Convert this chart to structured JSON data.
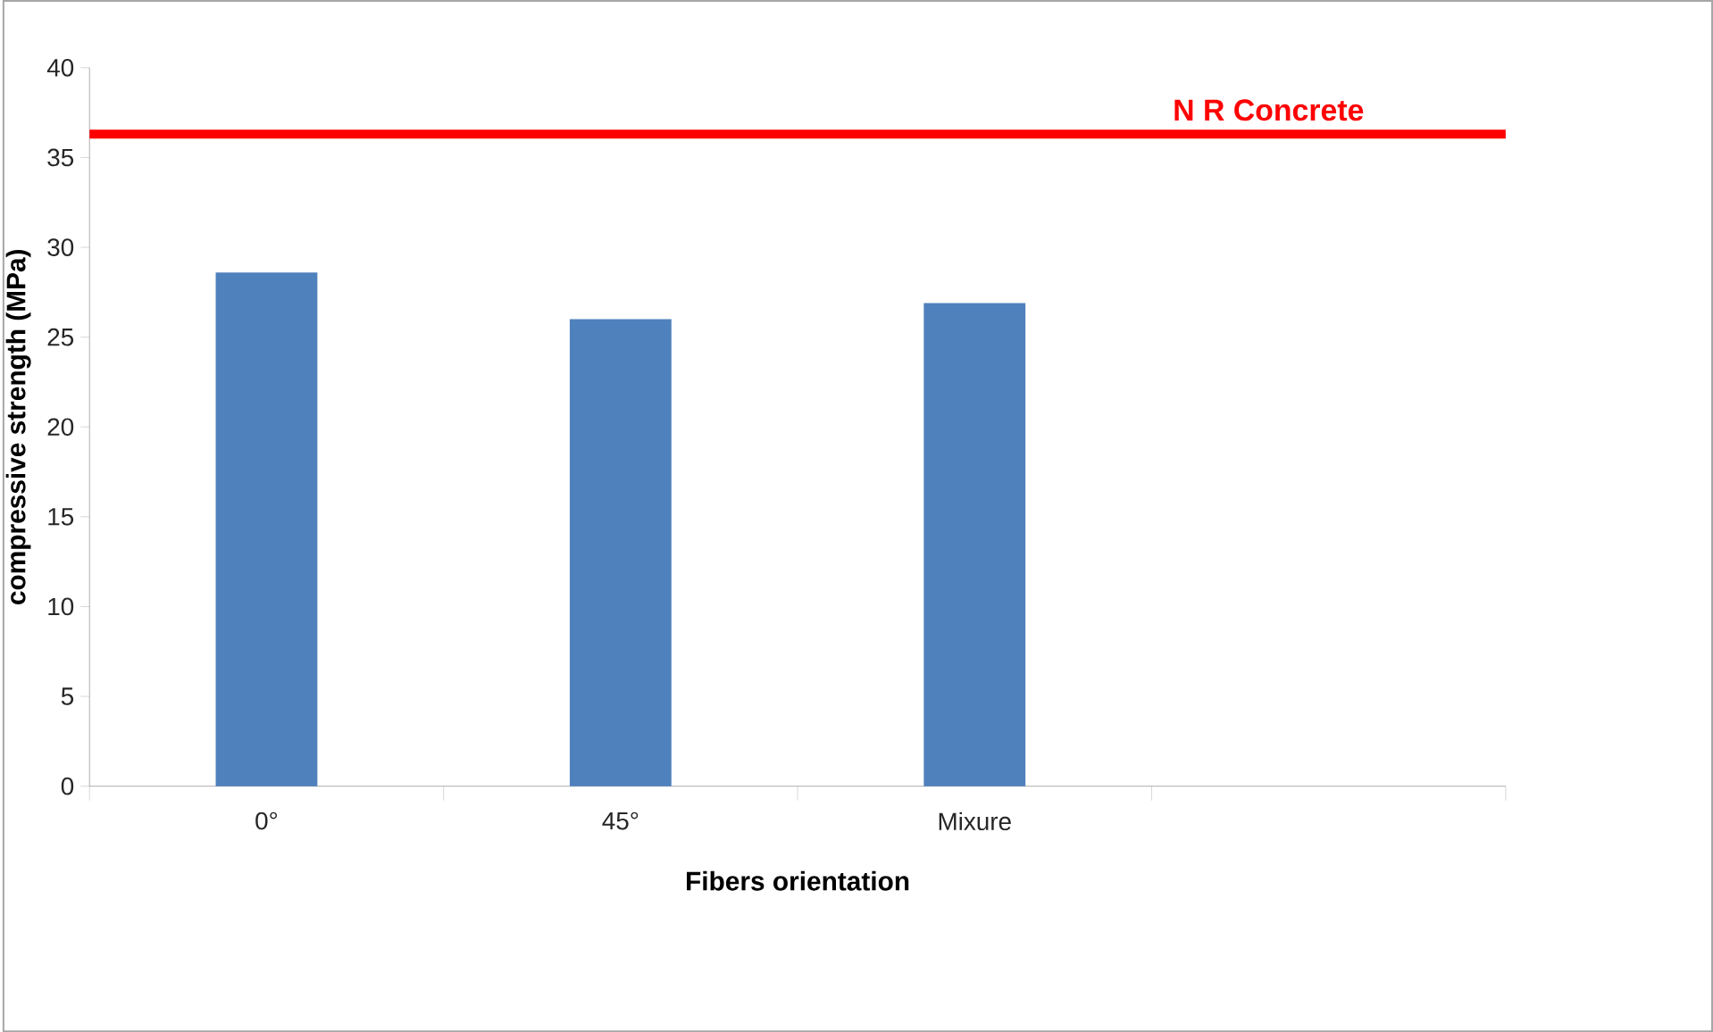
{
  "chart_data": {
    "type": "bar",
    "xlabel": "Fibers orientation",
    "ylabel": "compressive strength (MPa)",
    "categories": [
      "0°",
      "45°",
      "Mixure",
      null
    ],
    "values": [
      28.6,
      26.0,
      26.9,
      null
    ],
    "color": "#4f81bd",
    "ylim": [
      0,
      40
    ],
    "yticks": [
      0,
      5,
      10,
      15,
      20,
      25,
      30,
      35,
      40
    ],
    "ref_lines": [
      {
        "axis": "y",
        "value": 36.3,
        "label": "N R Concrete",
        "color": "#ff0000"
      }
    ]
  }
}
